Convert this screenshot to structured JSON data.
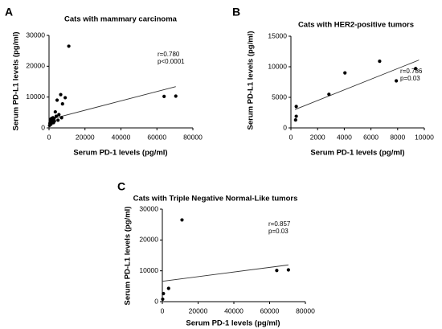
{
  "chart_data": [
    {
      "type": "scatter",
      "panel_letter": "A",
      "title": "Cats with mammary carcinoma",
      "xlabel": "Serum PD-1 levels (pg/ml)",
      "ylabel": "Serum PD-L1 levels (pg/ml)",
      "xlim": [
        0,
        80000
      ],
      "ylim": [
        0,
        30000
      ],
      "xticks": [
        0,
        20000,
        40000,
        60000,
        80000
      ],
      "yticks": [
        0,
        10000,
        20000,
        30000
      ],
      "xtick_labels": [
        "0",
        "20000",
        "40000",
        "60000",
        "80000"
      ],
      "ytick_labels": [
        "0",
        "10000",
        "20000",
        "30000"
      ],
      "annotations": [
        "r=0.780",
        "p<0.0001"
      ],
      "grid": false,
      "points": [
        {
          "x": 300,
          "y": 800
        },
        {
          "x": 500,
          "y": 1500
        },
        {
          "x": 700,
          "y": 2200
        },
        {
          "x": 900,
          "y": 2800
        },
        {
          "x": 1100,
          "y": 1200
        },
        {
          "x": 1300,
          "y": 2500
        },
        {
          "x": 1500,
          "y": 3100
        },
        {
          "x": 1800,
          "y": 1900
        },
        {
          "x": 2000,
          "y": 2600
        },
        {
          "x": 2200,
          "y": 3300
        },
        {
          "x": 2500,
          "y": 1700
        },
        {
          "x": 2800,
          "y": 3000
        },
        {
          "x": 3000,
          "y": 2200
        },
        {
          "x": 3500,
          "y": 5200
        },
        {
          "x": 4000,
          "y": 3800
        },
        {
          "x": 4500,
          "y": 9000
        },
        {
          "x": 5000,
          "y": 2500
        },
        {
          "x": 5500,
          "y": 4300
        },
        {
          "x": 6500,
          "y": 10800
        },
        {
          "x": 7000,
          "y": 3300
        },
        {
          "x": 7500,
          "y": 7800
        },
        {
          "x": 9000,
          "y": 9800
        },
        {
          "x": 11000,
          "y": 26500
        },
        {
          "x": 64000,
          "y": 10200
        },
        {
          "x": 70500,
          "y": 10300
        }
      ],
      "regression_line": {
        "x": [
          0,
          70500
        ],
        "y": [
          2700,
          13400
        ]
      }
    },
    {
      "type": "scatter",
      "panel_letter": "B",
      "title": "Cats with HER2-positive tumors",
      "xlabel": "Serum PD-1 levels (pg/ml)",
      "ylabel": "Serum PD-L1 levels (pg/ml)",
      "xlim": [
        0,
        10000
      ],
      "ylim": [
        0,
        15000
      ],
      "xticks": [
        0,
        2000,
        4000,
        6000,
        8000,
        10000
      ],
      "yticks": [
        0,
        5000,
        10000,
        15000
      ],
      "xtick_labels": [
        "0",
        "2000",
        "4000",
        "6000",
        "8000",
        "10000"
      ],
      "ytick_labels": [
        "0",
        "5000",
        "10000",
        "15000"
      ],
      "annotations": [
        "r=0.786",
        "p=0.03"
      ],
      "grid": false,
      "points": [
        {
          "x": 350,
          "y": 1300
        },
        {
          "x": 400,
          "y": 1900
        },
        {
          "x": 400,
          "y": 3500
        },
        {
          "x": 2850,
          "y": 5500
        },
        {
          "x": 4050,
          "y": 9000
        },
        {
          "x": 6650,
          "y": 10900
        },
        {
          "x": 7900,
          "y": 7700
        },
        {
          "x": 9350,
          "y": 9700
        }
      ],
      "regression_line": {
        "x": [
          300,
          9600
        ],
        "y": [
          3000,
          11100
        ]
      }
    },
    {
      "type": "scatter",
      "panel_letter": "C",
      "title": "Cats with Triple Negative Normal-Like tumors",
      "xlabel": "Serum PD-1 levels (pg/ml)",
      "ylabel": "Serum PD-L1 levels (pg/ml)",
      "xlim": [
        0,
        80000
      ],
      "ylim": [
        0,
        30000
      ],
      "xticks": [
        0,
        20000,
        40000,
        60000,
        80000
      ],
      "yticks": [
        0,
        10000,
        20000,
        30000
      ],
      "xtick_labels": [
        "0",
        "20000",
        "40000",
        "60000",
        "80000"
      ],
      "ytick_labels": [
        "0",
        "10000",
        "20000",
        "30000"
      ],
      "annotations": [
        "r=0.857",
        "p=0.03"
      ],
      "grid": false,
      "points": [
        {
          "x": 200,
          "y": 800
        },
        {
          "x": 600,
          "y": 2600
        },
        {
          "x": 3500,
          "y": 4300
        },
        {
          "x": 11000,
          "y": 26500
        },
        {
          "x": 64000,
          "y": 10100
        },
        {
          "x": 70500,
          "y": 10300
        }
      ],
      "regression_line": {
        "x": [
          0,
          70500
        ],
        "y": [
          6600,
          11900
        ]
      }
    }
  ]
}
